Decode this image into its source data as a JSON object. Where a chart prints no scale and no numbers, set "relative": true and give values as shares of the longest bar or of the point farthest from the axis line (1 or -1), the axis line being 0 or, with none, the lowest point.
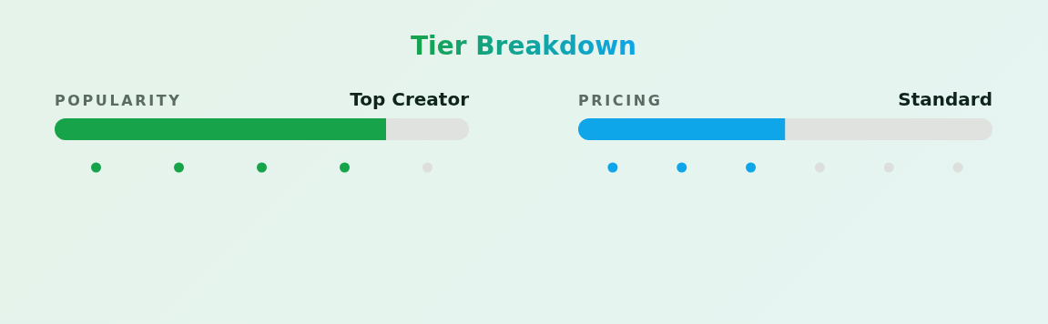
{
  "chart_data": [
    {
      "type": "bar",
      "title": "Tier Breakdown",
      "ylabel": "POPULARITY",
      "annotations": [
        "Top Creator"
      ],
      "orientation": "horizontal",
      "stacked": true,
      "relative": true,
      "categories": [
        null
      ],
      "series": [
        {
          "color": "#16a34a",
          "values": [
            0.8
          ]
        },
        {
          "color": "#dfe2df",
          "values": [
            0.2
          ]
        }
      ]
    },
    {
      "type": "bar",
      "ylabel": "PRICING",
      "annotations": [
        "Standard"
      ],
      "orientation": "horizontal",
      "stacked": true,
      "relative": true,
      "categories": [
        null
      ],
      "series": [
        {
          "color": "#0ea5e9",
          "values": [
            0.5
          ]
        },
        {
          "color": "#dfe2df",
          "values": [
            0.5
          ]
        }
      ]
    }
  ]
}
